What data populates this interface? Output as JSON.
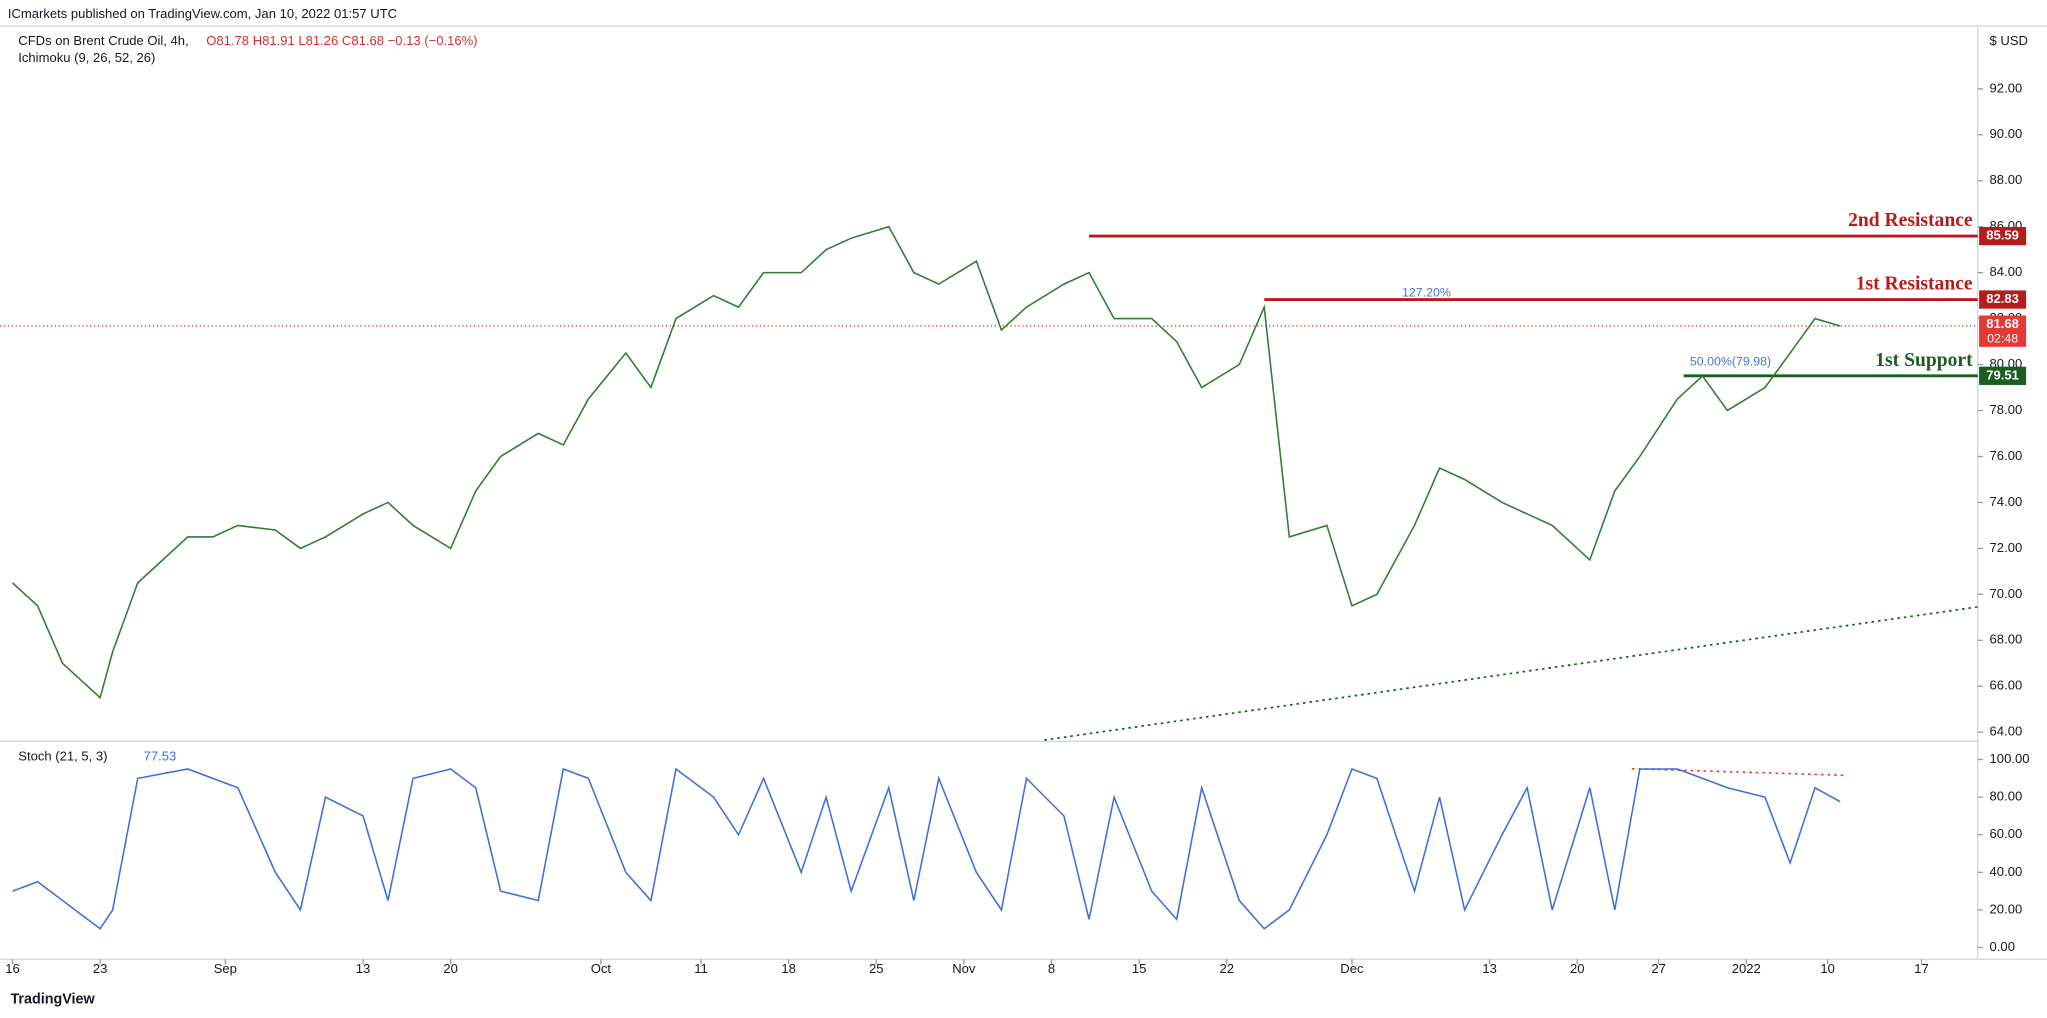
{
  "header": {
    "publisher": "ICmarkets published on TradingView.com, Jan 10, 2022 01:57 UTC",
    "symbol": "CFDs on Brent Crude Oil, 4h,",
    "ohlc": "O81.78 H81.91 L81.26 C81.68 −0.13 (−0.16%)",
    "indicator": "Ichimoku (9, 26, 52, 26)",
    "currency": "$ USD",
    "countdown": "02:48",
    "footer": "TradingView"
  },
  "chart_data": [
    {
      "type": "line",
      "name": "CFDs on Brent Crude Oil",
      "color": "#2e7d32",
      "x": [
        0,
        2,
        4,
        7,
        8,
        10,
        14,
        16,
        18,
        21,
        23,
        25,
        28,
        30,
        32,
        35,
        37,
        39,
        42,
        44,
        46,
        49,
        51,
        53,
        56,
        58,
        60,
        63,
        65,
        67,
        70,
        72,
        74,
        77,
        79,
        81,
        84,
        86,
        88,
        91,
        93,
        95,
        98,
        100,
        102,
        105,
        107,
        109,
        112,
        114,
        116,
        119,
        121,
        123,
        126,
        128,
        130,
        133,
        135,
        137,
        140,
        142,
        144,
        146
      ],
      "values": [
        70.5,
        69.5,
        67,
        65.5,
        67.5,
        70.5,
        72.5,
        72.5,
        73,
        72.8,
        72,
        72.5,
        73.5,
        74,
        73,
        72,
        74.5,
        76,
        77,
        76.5,
        78.5,
        80.5,
        79,
        82,
        83,
        82.5,
        84,
        84,
        85,
        85.5,
        86,
        84,
        83.5,
        84.5,
        81.5,
        82.5,
        83.5,
        84,
        82,
        82,
        81,
        79,
        80,
        82.5,
        72.5,
        73,
        69.5,
        70,
        73,
        75.5,
        75,
        74,
        73.5,
        73,
        71.5,
        74.5,
        76,
        78.5,
        79.5,
        78,
        79,
        80.5,
        82,
        81.68
      ],
      "xlim": [
        -1,
        157
      ],
      "xticks": [
        {
          "value": 0,
          "label": "16"
        },
        {
          "value": 7,
          "label": "23"
        },
        {
          "value": 17,
          "label": "Sep"
        },
        {
          "value": 28,
          "label": "13"
        },
        {
          "value": 35,
          "label": "20"
        },
        {
          "value": 47,
          "label": "Oct"
        },
        {
          "value": 55,
          "label": "11"
        },
        {
          "value": 62,
          "label": "18"
        },
        {
          "value": 69,
          "label": "25"
        },
        {
          "value": 76,
          "label": "Nov"
        },
        {
          "value": 83,
          "label": "8"
        },
        {
          "value": 90,
          "label": "15"
        },
        {
          "value": 97,
          "label": "22"
        },
        {
          "value": 107,
          "label": "Dec"
        },
        {
          "value": 118,
          "label": "13"
        },
        {
          "value": 125,
          "label": "20"
        },
        {
          "value": 131.5,
          "label": "27"
        },
        {
          "value": 138.5,
          "label": "2022"
        },
        {
          "value": 145,
          "label": "10"
        },
        {
          "value": 152.5,
          "label": "17"
        }
      ],
      "ylim": [
        63.66,
        94.73
      ],
      "yticks": [
        {
          "value": 64,
          "label": "64.00"
        },
        {
          "value": 66,
          "label": "66.00"
        },
        {
          "value": 68,
          "label": "68.00"
        },
        {
          "value": 70,
          "label": "70.00"
        },
        {
          "value": 72,
          "label": "72.00"
        },
        {
          "value": 74,
          "label": "74.00"
        },
        {
          "value": 76,
          "label": "76.00"
        },
        {
          "value": 78,
          "label": "78.00"
        },
        {
          "value": 80,
          "label": "80.00"
        },
        {
          "value": 82,
          "label": "82.00"
        },
        {
          "value": 84,
          "label": "84.00"
        },
        {
          "value": 86,
          "label": "86.00"
        },
        {
          "value": 88,
          "label": "88.00"
        },
        {
          "value": 90,
          "label": "90.00"
        },
        {
          "value": 92,
          "label": "92.00"
        }
      ],
      "last_price": 81.68,
      "levels": [
        {
          "label": "2nd Resistance",
          "value": 85.59,
          "start": 86,
          "color": "#b71c1c"
        },
        {
          "label": "1st Resistance",
          "value": 82.83,
          "start": 100,
          "color": "#b71c1c"
        },
        {
          "label": "1st Support",
          "value": 79.51,
          "start": 133.5,
          "color": "#1b5e20"
        }
      ],
      "annotations": [
        {
          "text": "127.20%",
          "x": 111,
          "y": 83.1
        },
        {
          "text": "50.00%(79.98)",
          "x": 134,
          "y": 80.1
        }
      ]
    },
    {
      "type": "line",
      "name": "Stoch (21, 5, 3)",
      "last_label": "77.53",
      "color": "#3f6fd8",
      "values": [
        30,
        35,
        25,
        10,
        20,
        90,
        95,
        90,
        85,
        40,
        20,
        80,
        70,
        25,
        90,
        95,
        85,
        30,
        25,
        95,
        90,
        40,
        25,
        95,
        80,
        60,
        90,
        40,
        80,
        30,
        85,
        25,
        90,
        40,
        20,
        90,
        70,
        15,
        80,
        30,
        15,
        85,
        25,
        10,
        20,
        60,
        95,
        90,
        30,
        80,
        20,
        60,
        85,
        20,
        85,
        20,
        95,
        95,
        90,
        85,
        80,
        45,
        85,
        77.53
      ],
      "ylim": [
        -6.25,
        109
      ],
      "yticks": [
        {
          "value": 0,
          "label": "0.00"
        },
        {
          "value": 20,
          "label": "20.00"
        },
        {
          "value": 40,
          "label": "40.00"
        },
        {
          "value": 60,
          "label": "60.00"
        },
        {
          "value": 80,
          "label": "80.00"
        },
        {
          "value": 100,
          "label": "100.00"
        }
      ]
    }
  ]
}
